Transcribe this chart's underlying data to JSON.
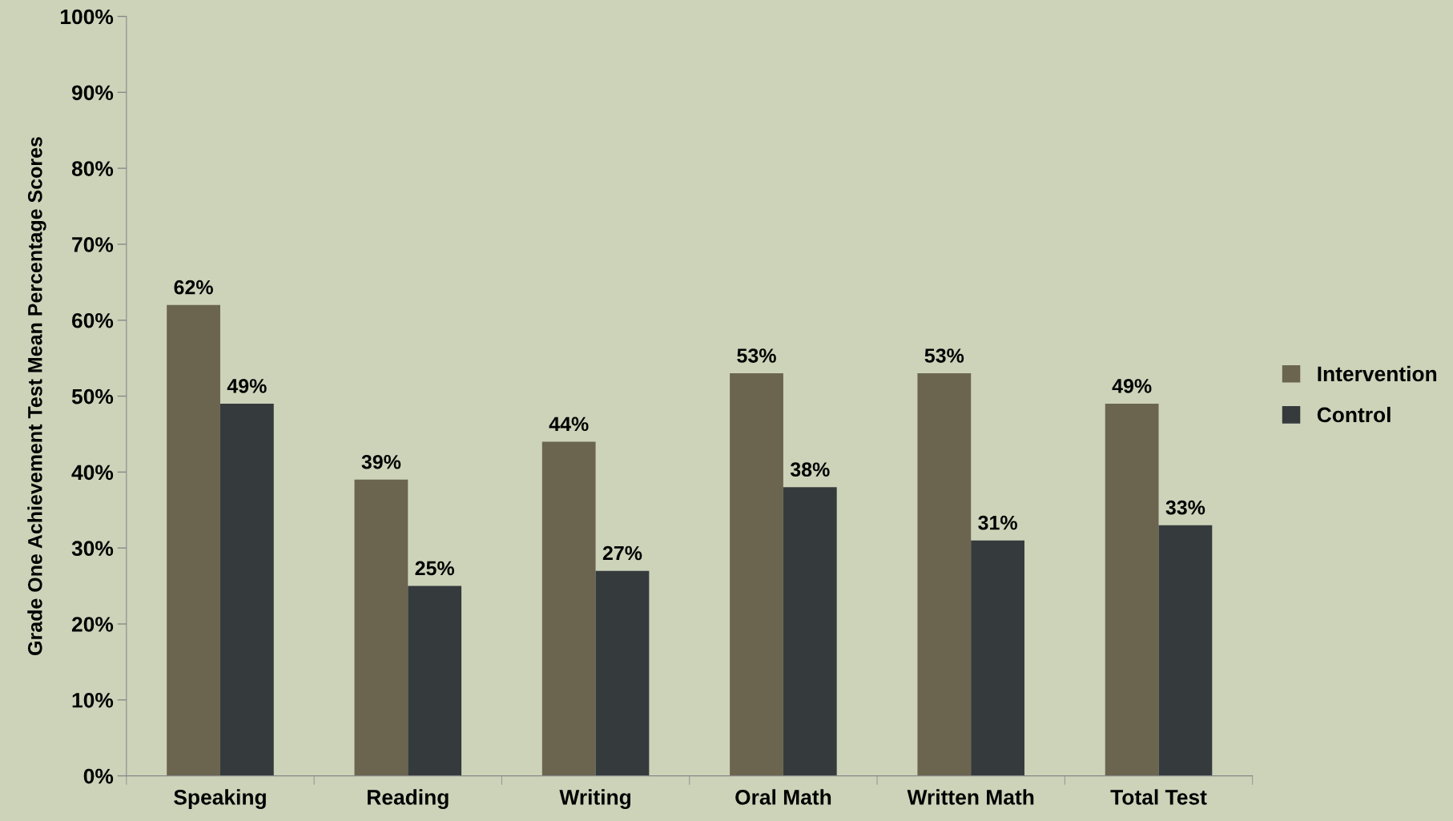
{
  "chart_data": {
    "type": "bar",
    "ylabel": "Grade One Achievement Test Mean Percentage Scores",
    "categories": [
      "Speaking",
      "Reading",
      "Writing",
      "Oral Math",
      "Written Math",
      "Total Test"
    ],
    "series": [
      {
        "name": "Intervention",
        "color": "#6b6550",
        "values": [
          62,
          39,
          44,
          53,
          53,
          49
        ]
      },
      {
        "name": "Control",
        "color": "#353a3d",
        "values": [
          49,
          25,
          27,
          38,
          31,
          33
        ]
      }
    ],
    "value_labels": [
      [
        "62%",
        "39%",
        "44%",
        "53%",
        "53%",
        "49%"
      ],
      [
        "49%",
        "25%",
        "27%",
        "38%",
        "31%",
        "33%"
      ]
    ],
    "ylim": [
      0,
      100
    ],
    "yticks": [
      {
        "value": 0,
        "label": "0%"
      },
      {
        "value": 10,
        "label": "10%"
      },
      {
        "value": 20,
        "label": "20%"
      },
      {
        "value": 30,
        "label": "30%"
      },
      {
        "value": 40,
        "label": "40%"
      },
      {
        "value": 50,
        "label": "50%"
      },
      {
        "value": 60,
        "label": "60%"
      },
      {
        "value": 70,
        "label": "70%"
      },
      {
        "value": 80,
        "label": "80%"
      },
      {
        "value": 90,
        "label": "90%"
      },
      {
        "value": 100,
        "label": "100%"
      }
    ],
    "grid": false,
    "legend": "right"
  }
}
